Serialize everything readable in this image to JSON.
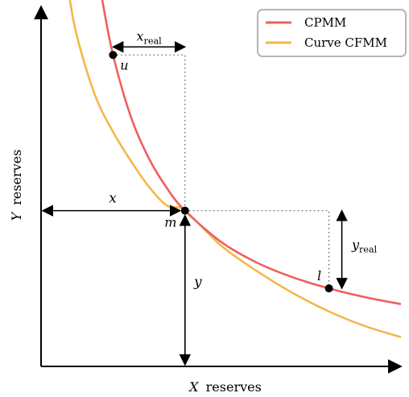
{
  "chart_data": {
    "type": "line",
    "xlabel": {
      "var": "X",
      "text": "reserves"
    },
    "ylabel": {
      "var": "Y",
      "text": "reserves"
    },
    "xlim": [
      0,
      10
    ],
    "ylim": [
      0,
      10
    ],
    "legend": {
      "placement": "top-right"
    },
    "series": [
      {
        "name": "CPMM",
        "color": "#ef5f5f",
        "points": [
          [
            1.7,
            10.0
          ],
          [
            2.0,
            8.5
          ],
          [
            2.5,
            6.8
          ],
          [
            3.0,
            5.67
          ],
          [
            3.5,
            4.86
          ],
          [
            4.0,
            4.25
          ],
          [
            5.0,
            3.4
          ],
          [
            6.0,
            2.83
          ],
          [
            7.0,
            2.43
          ],
          [
            8.0,
            2.13
          ],
          [
            9.0,
            1.89
          ],
          [
            10.0,
            1.7
          ]
        ]
      },
      {
        "name": "Curve CFMM",
        "color": "#f2b84b",
        "points": [
          [
            0.8,
            10.0
          ],
          [
            1.0,
            9.0
          ],
          [
            1.5,
            7.4
          ],
          [
            2.0,
            6.4
          ],
          [
            2.5,
            5.6
          ],
          [
            3.0,
            4.9
          ],
          [
            3.5,
            4.39
          ],
          [
            4.0,
            4.25
          ],
          [
            5.0,
            3.3
          ],
          [
            6.0,
            2.6
          ],
          [
            7.0,
            2.0
          ],
          [
            8.0,
            1.5
          ],
          [
            9.0,
            1.1
          ],
          [
            10.0,
            0.8
          ]
        ]
      }
    ],
    "points": [
      {
        "label": "u",
        "x": 2.0,
        "y": 8.5
      },
      {
        "label": "m",
        "x": 4.0,
        "y": 4.25
      },
      {
        "label": "l",
        "x": 8.0,
        "y": 2.13
      }
    ],
    "annotations": [
      {
        "label": "x",
        "sub": "real"
      },
      {
        "label": "y",
        "sub": "real"
      },
      {
        "label": "x",
        "sub": ""
      },
      {
        "label": "y",
        "sub": ""
      }
    ]
  }
}
